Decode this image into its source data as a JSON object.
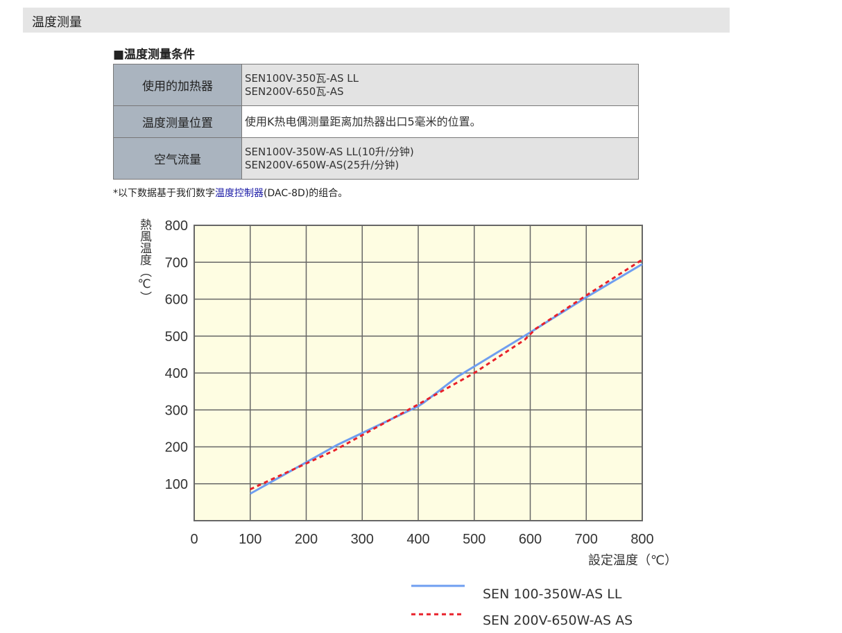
{
  "header": {
    "title": "温度测量"
  },
  "section_title": "■温度测量条件",
  "conditions": [
    {
      "label": "使用的加热器",
      "lines": [
        "SEN100V-350瓦-AS LL",
        "SEN200V-650瓦-AS"
      ]
    },
    {
      "label": "温度测量位置",
      "lines": [
        "使用K热电偶测量距离加热器出口5毫米的位置。"
      ]
    },
    {
      "label": "空气流量",
      "lines": [
        "SEN100V-350W-AS LL(10升/分钟)",
        "SEN200V-650W-AS(25升/分钟)"
      ]
    }
  ],
  "note": {
    "prefix": "*以下数据基于我们数字",
    "link": "温度控制器",
    "suffix": "(DAC-8D)的组合。"
  },
  "chart_data": {
    "type": "line",
    "xlabel": "設定温度（℃）",
    "ylabel": "熱風温度（℃）",
    "xlim": [
      0,
      800
    ],
    "ylim": [
      0,
      800
    ],
    "xticks": [
      "0",
      "100",
      "200",
      "300",
      "400",
      "500",
      "600",
      "700",
      "800"
    ],
    "yticks": [
      "100",
      "200",
      "300",
      "400",
      "500",
      "600",
      "700",
      "800"
    ],
    "grid": true,
    "background": "#fefde2",
    "legend_position": "bottom-right",
    "series": [
      {
        "name": "SEN 100-350W-AS LL",
        "color": "#6f9ef0",
        "dash": false,
        "x": [
          100,
          255,
          400,
          410,
          470,
          600,
          700,
          800
        ],
        "y": [
          73,
          205,
          310,
          320,
          390,
          510,
          605,
          695
        ]
      },
      {
        "name": "SEN 200V-650W-AS AS",
        "color": "#e8202a",
        "dash": true,
        "x": [
          100,
          250,
          400,
          500,
          560,
          590,
          610,
          700,
          800
        ],
        "y": [
          85,
          190,
          315,
          400,
          460,
          490,
          520,
          610,
          707
        ]
      }
    ]
  }
}
